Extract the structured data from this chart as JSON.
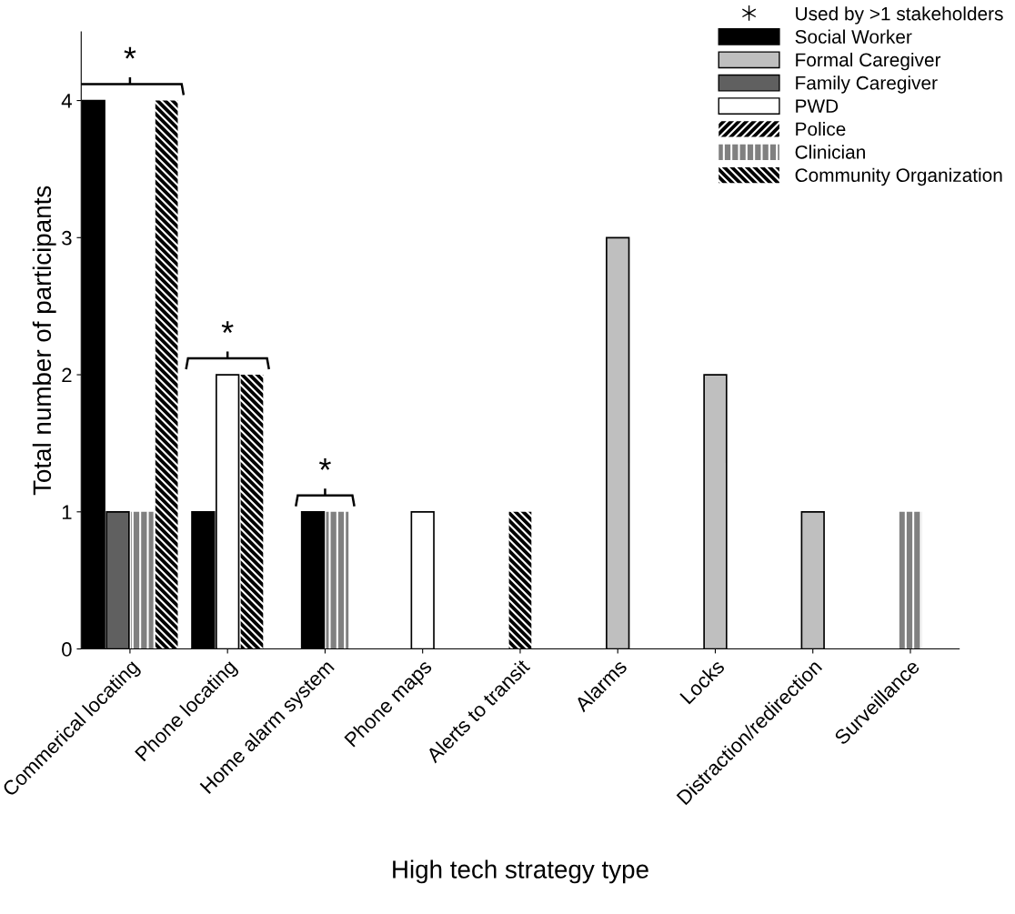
{
  "chart_data": {
    "type": "bar",
    "xlabel": "High tech strategy type",
    "ylabel": "Total number of participants",
    "categories": [
      "Commerical locating",
      "Phone locating",
      "Home alarm system",
      "Phone maps",
      "Alerts to transit",
      "Alarms",
      "Locks",
      "Distraction/redirection",
      "Surveillance"
    ],
    "series": [
      {
        "name": "Social Worker",
        "color": "#000000",
        "values": [
          4,
          1,
          1,
          null,
          null,
          null,
          null,
          null,
          null
        ]
      },
      {
        "name": "Formal Caregiver",
        "color": "#bfbfbf",
        "values": [
          null,
          null,
          null,
          null,
          null,
          3,
          2,
          1,
          null
        ]
      },
      {
        "name": "Family Caregiver",
        "color": "#606060",
        "values": [
          1,
          null,
          null,
          null,
          null,
          null,
          null,
          null,
          null
        ]
      },
      {
        "name": "PWD",
        "color": "#ffffff",
        "values": [
          null,
          2,
          null,
          1,
          null,
          null,
          null,
          null,
          null
        ]
      },
      {
        "name": "Police",
        "color": "#000000",
        "values": [
          null,
          null,
          null,
          null,
          null,
          null,
          null,
          null,
          null
        ]
      },
      {
        "name": "Clinician",
        "color": "#808080",
        "values": [
          1,
          null,
          1,
          null,
          null,
          null,
          null,
          null,
          1
        ]
      },
      {
        "name": "Community Organization",
        "color": "#000000",
        "values": [
          4,
          2,
          null,
          null,
          1,
          null,
          null,
          null,
          null
        ]
      }
    ],
    "annotations": [
      "*",
      "*",
      "*",
      "Used by >1 stakeholders"
    ],
    "ylim": [
      0,
      4.5
    ],
    "yticks": [
      0,
      1,
      2,
      3,
      4
    ],
    "grid": false,
    "legend": "top right"
  }
}
